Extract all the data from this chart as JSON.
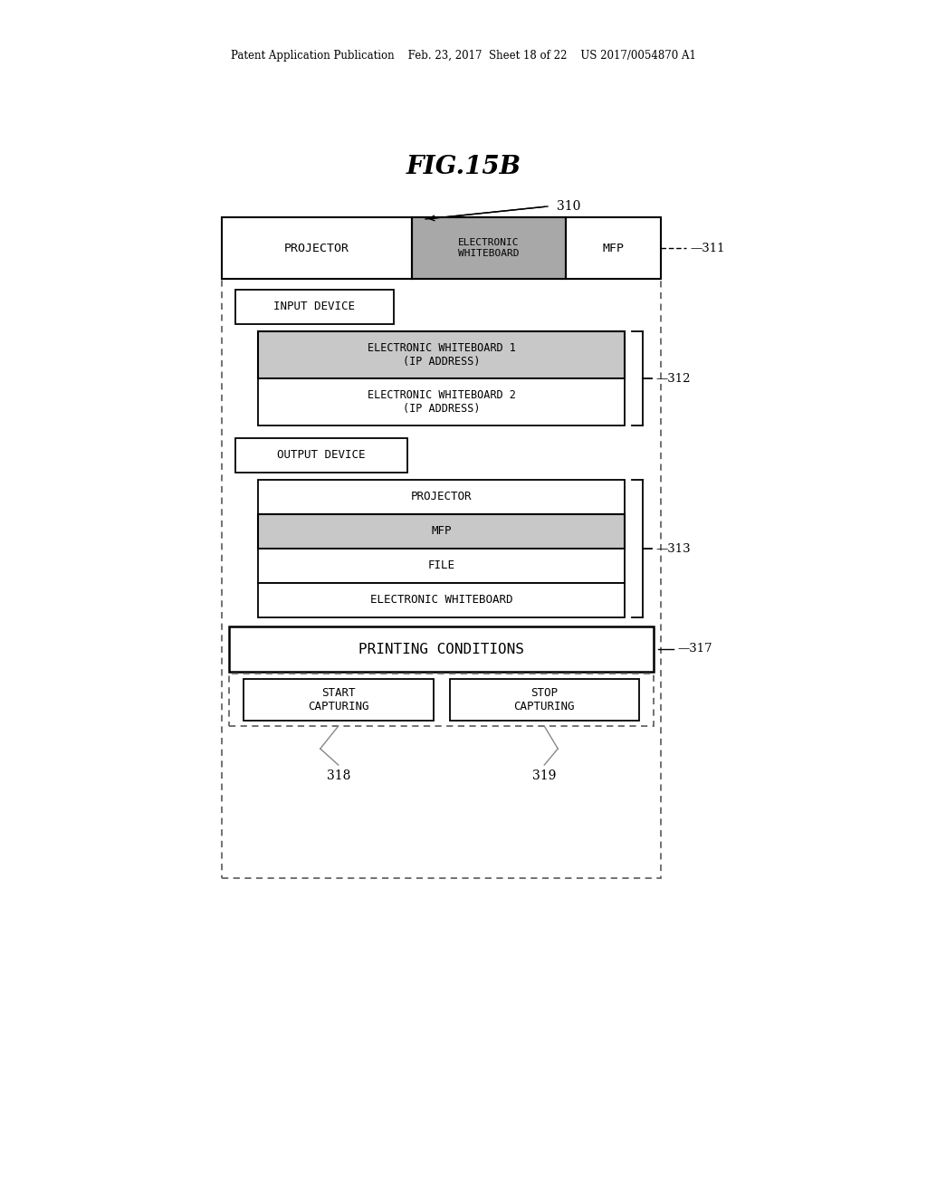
{
  "header_text": "Patent Application Publication    Feb. 23, 2017  Sheet 18 of 22    US 2017/0054870 A1",
  "figure_label": "FIG.15B",
  "bg_color": "#ffffff",
  "ref_310": "310",
  "ref_311": "311",
  "ref_312": "312",
  "ref_313": "313",
  "ref_317": "317",
  "ref_318": "318",
  "ref_319": "319",
  "row1_projector": "PROJECTOR",
  "row1_ew": "ELECTRONIC\nWHITEBOARD",
  "row1_mfp": "MFP",
  "input_device_label": "INPUT DEVICE",
  "ew1_label": "ELECTRONIC WHITEBOARD 1\n(IP ADDRESS)",
  "ew2_label": "ELECTRONIC WHITEBOARD 2\n(IP ADDRESS)",
  "output_device_label": "OUTPUT DEVICE",
  "projector_label": "PROJECTOR",
  "mfp_label": "MFP",
  "file_label": "FILE",
  "ew_out_label": "ELECTRONIC WHITEBOARD",
  "printing_conditions_label": "PRINTING CONDITIONS",
  "start_capturing_label": "START\nCAPTURING",
  "stop_capturing_label": "STOP\nCAPTURING",
  "gray_med": "#a8a8a8",
  "gray_light": "#c8c8c8",
  "line_color": "#333333",
  "dot_color": "#666666"
}
